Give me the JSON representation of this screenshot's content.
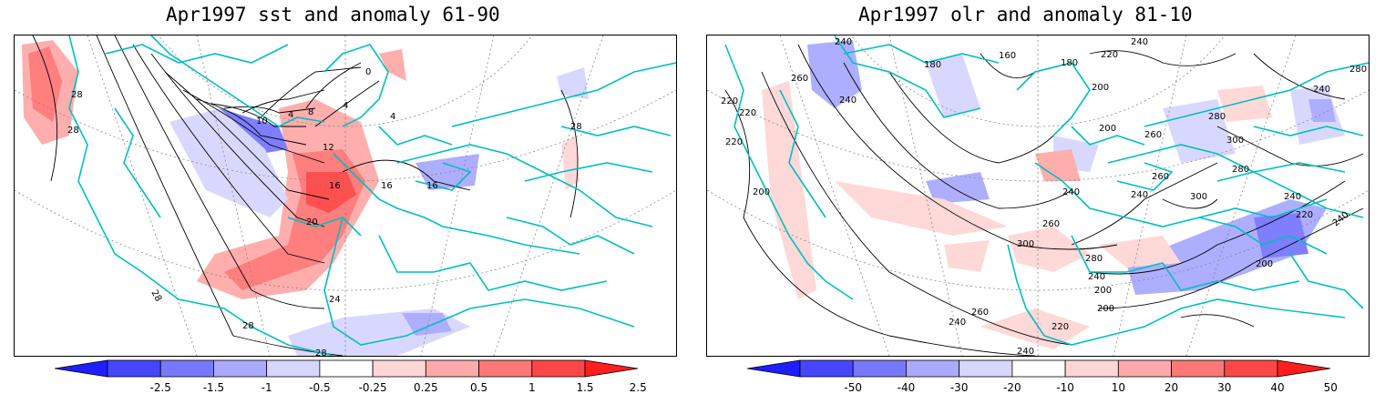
{
  "panels": [
    {
      "title": "Apr1997 sst and anomaly 61-90",
      "contour_labels": [
        "28",
        "28",
        "28",
        "0",
        "4",
        "4",
        "8",
        "10",
        "12",
        "16",
        "16",
        "16",
        "20",
        "24",
        "28",
        "28",
        "28",
        "4"
      ]
    },
    {
      "title": "Apr1997 olr and anomaly 81-10",
      "contour_labels": [
        "240",
        "180",
        "160",
        "180",
        "220",
        "240",
        "200",
        "260",
        "240",
        "220",
        "220",
        "220",
        "200",
        "280",
        "240",
        "300",
        "260",
        "280",
        "300",
        "240",
        "260",
        "200",
        "240",
        "260",
        "300",
        "280",
        "240",
        "200",
        "260",
        "240",
        "240",
        "220",
        "200",
        "280",
        "240",
        "220",
        "240",
        "200"
      ]
    }
  ],
  "colorbars": [
    {
      "colors": [
        "#1e1eff",
        "#4646ff",
        "#7878ff",
        "#aaaaff",
        "#d6d6ff",
        "#ffffff",
        "#ffd6d6",
        "#ffaaaa",
        "#ff7878",
        "#ff4646",
        "#ff1e1e"
      ],
      "labels": [
        "-2.5",
        "-1.5",
        "-1",
        "-0.5",
        "-0.25",
        "0.25",
        "0.5",
        "1",
        "1.5",
        "2.5"
      ]
    },
    {
      "colors": [
        "#1e1eff",
        "#4646ff",
        "#7878ff",
        "#aaaaff",
        "#d6d6ff",
        "#ffffff",
        "#ffd6d6",
        "#ffaaaa",
        "#ff7878",
        "#ff4646",
        "#ff1e1e"
      ],
      "labels": [
        "-50",
        "-40",
        "-30",
        "-20",
        "-10",
        "10",
        "20",
        "30",
        "40",
        "50"
      ]
    }
  ],
  "colors": {
    "coast": "#00c0c0",
    "contour": "#000000",
    "grid": "#888888"
  }
}
